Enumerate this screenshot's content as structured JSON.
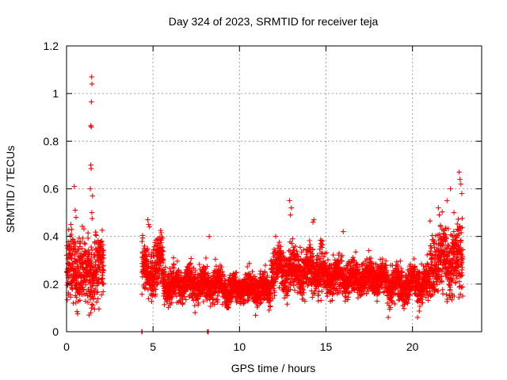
{
  "chart_data": {
    "type": "scatter",
    "title": "Day 324 of 2023, SRMTID for receiver teja",
    "xlabel": "GPS time / hours",
    "ylabel": "SRMTID / TECUs",
    "xlim": [
      0,
      24
    ],
    "ylim": [
      0,
      1.2
    ],
    "xticks": [
      "0",
      "5",
      "10",
      "15",
      "20"
    ],
    "yticks": [
      "0",
      "0.2",
      "0.4",
      "0.6",
      "0.8",
      "1",
      "1.2"
    ],
    "grid": true,
    "marker": "+",
    "color": "#ff0000",
    "segments": [
      {
        "start": 0.0,
        "end": 2.15,
        "mean": 0.26,
        "spread": 0.11
      },
      {
        "start": 4.35,
        "end": 5.6,
        "mean": 0.26,
        "spread": 0.09
      },
      {
        "start": 5.6,
        "end": 9.0,
        "mean": 0.2,
        "spread": 0.06
      },
      {
        "start": 9.0,
        "end": 11.8,
        "mean": 0.18,
        "spread": 0.05
      },
      {
        "start": 11.8,
        "end": 14.8,
        "mean": 0.26,
        "spread": 0.08
      },
      {
        "start": 14.8,
        "end": 18.5,
        "mean": 0.23,
        "spread": 0.06
      },
      {
        "start": 18.5,
        "end": 21.0,
        "mean": 0.2,
        "spread": 0.06
      },
      {
        "start": 21.0,
        "end": 22.9,
        "mean": 0.3,
        "spread": 0.12
      }
    ],
    "notable_points": [
      {
        "x": 1.45,
        "y": 1.07
      },
      {
        "x": 1.47,
        "y": 1.04
      },
      {
        "x": 1.44,
        "y": 0.965
      },
      {
        "x": 1.4,
        "y": 0.865
      },
      {
        "x": 1.43,
        "y": 0.86
      },
      {
        "x": 1.4,
        "y": 0.7
      },
      {
        "x": 1.42,
        "y": 0.685
      },
      {
        "x": 1.38,
        "y": 0.6
      },
      {
        "x": 1.5,
        "y": 0.57
      },
      {
        "x": 1.46,
        "y": 0.5
      },
      {
        "x": 1.48,
        "y": 0.475
      },
      {
        "x": 0.45,
        "y": 0.61
      },
      {
        "x": 0.5,
        "y": 0.51
      },
      {
        "x": 0.55,
        "y": 0.48
      },
      {
        "x": 1.3,
        "y": 0.07
      },
      {
        "x": 4.7,
        "y": 0.47
      },
      {
        "x": 4.75,
        "y": 0.45
      },
      {
        "x": 4.8,
        "y": 0.44
      },
      {
        "x": 8.25,
        "y": 0.4
      },
      {
        "x": 12.9,
        "y": 0.55
      },
      {
        "x": 13.0,
        "y": 0.52
      },
      {
        "x": 12.95,
        "y": 0.49
      },
      {
        "x": 14.3,
        "y": 0.47
      },
      {
        "x": 14.25,
        "y": 0.46
      },
      {
        "x": 16.0,
        "y": 0.42
      },
      {
        "x": 18.6,
        "y": 0.06
      },
      {
        "x": 20.3,
        "y": 0.06
      },
      {
        "x": 21.5,
        "y": 0.52
      },
      {
        "x": 21.55,
        "y": 0.49
      },
      {
        "x": 22.0,
        "y": 0.55
      },
      {
        "x": 22.2,
        "y": 0.6
      },
      {
        "x": 22.7,
        "y": 0.67
      },
      {
        "x": 22.75,
        "y": 0.64
      },
      {
        "x": 22.8,
        "y": 0.62
      },
      {
        "x": 22.85,
        "y": 0.58
      },
      {
        "x": 22.4,
        "y": 0.5
      },
      {
        "x": 22.6,
        "y": 0.43
      },
      {
        "x": 22.9,
        "y": 0.15
      },
      {
        "x": 4.35,
        "y": 0.0
      },
      {
        "x": 4.37,
        "y": 0.0
      },
      {
        "x": 8.15,
        "y": 0.0
      },
      {
        "x": 8.2,
        "y": 0.0
      }
    ]
  }
}
